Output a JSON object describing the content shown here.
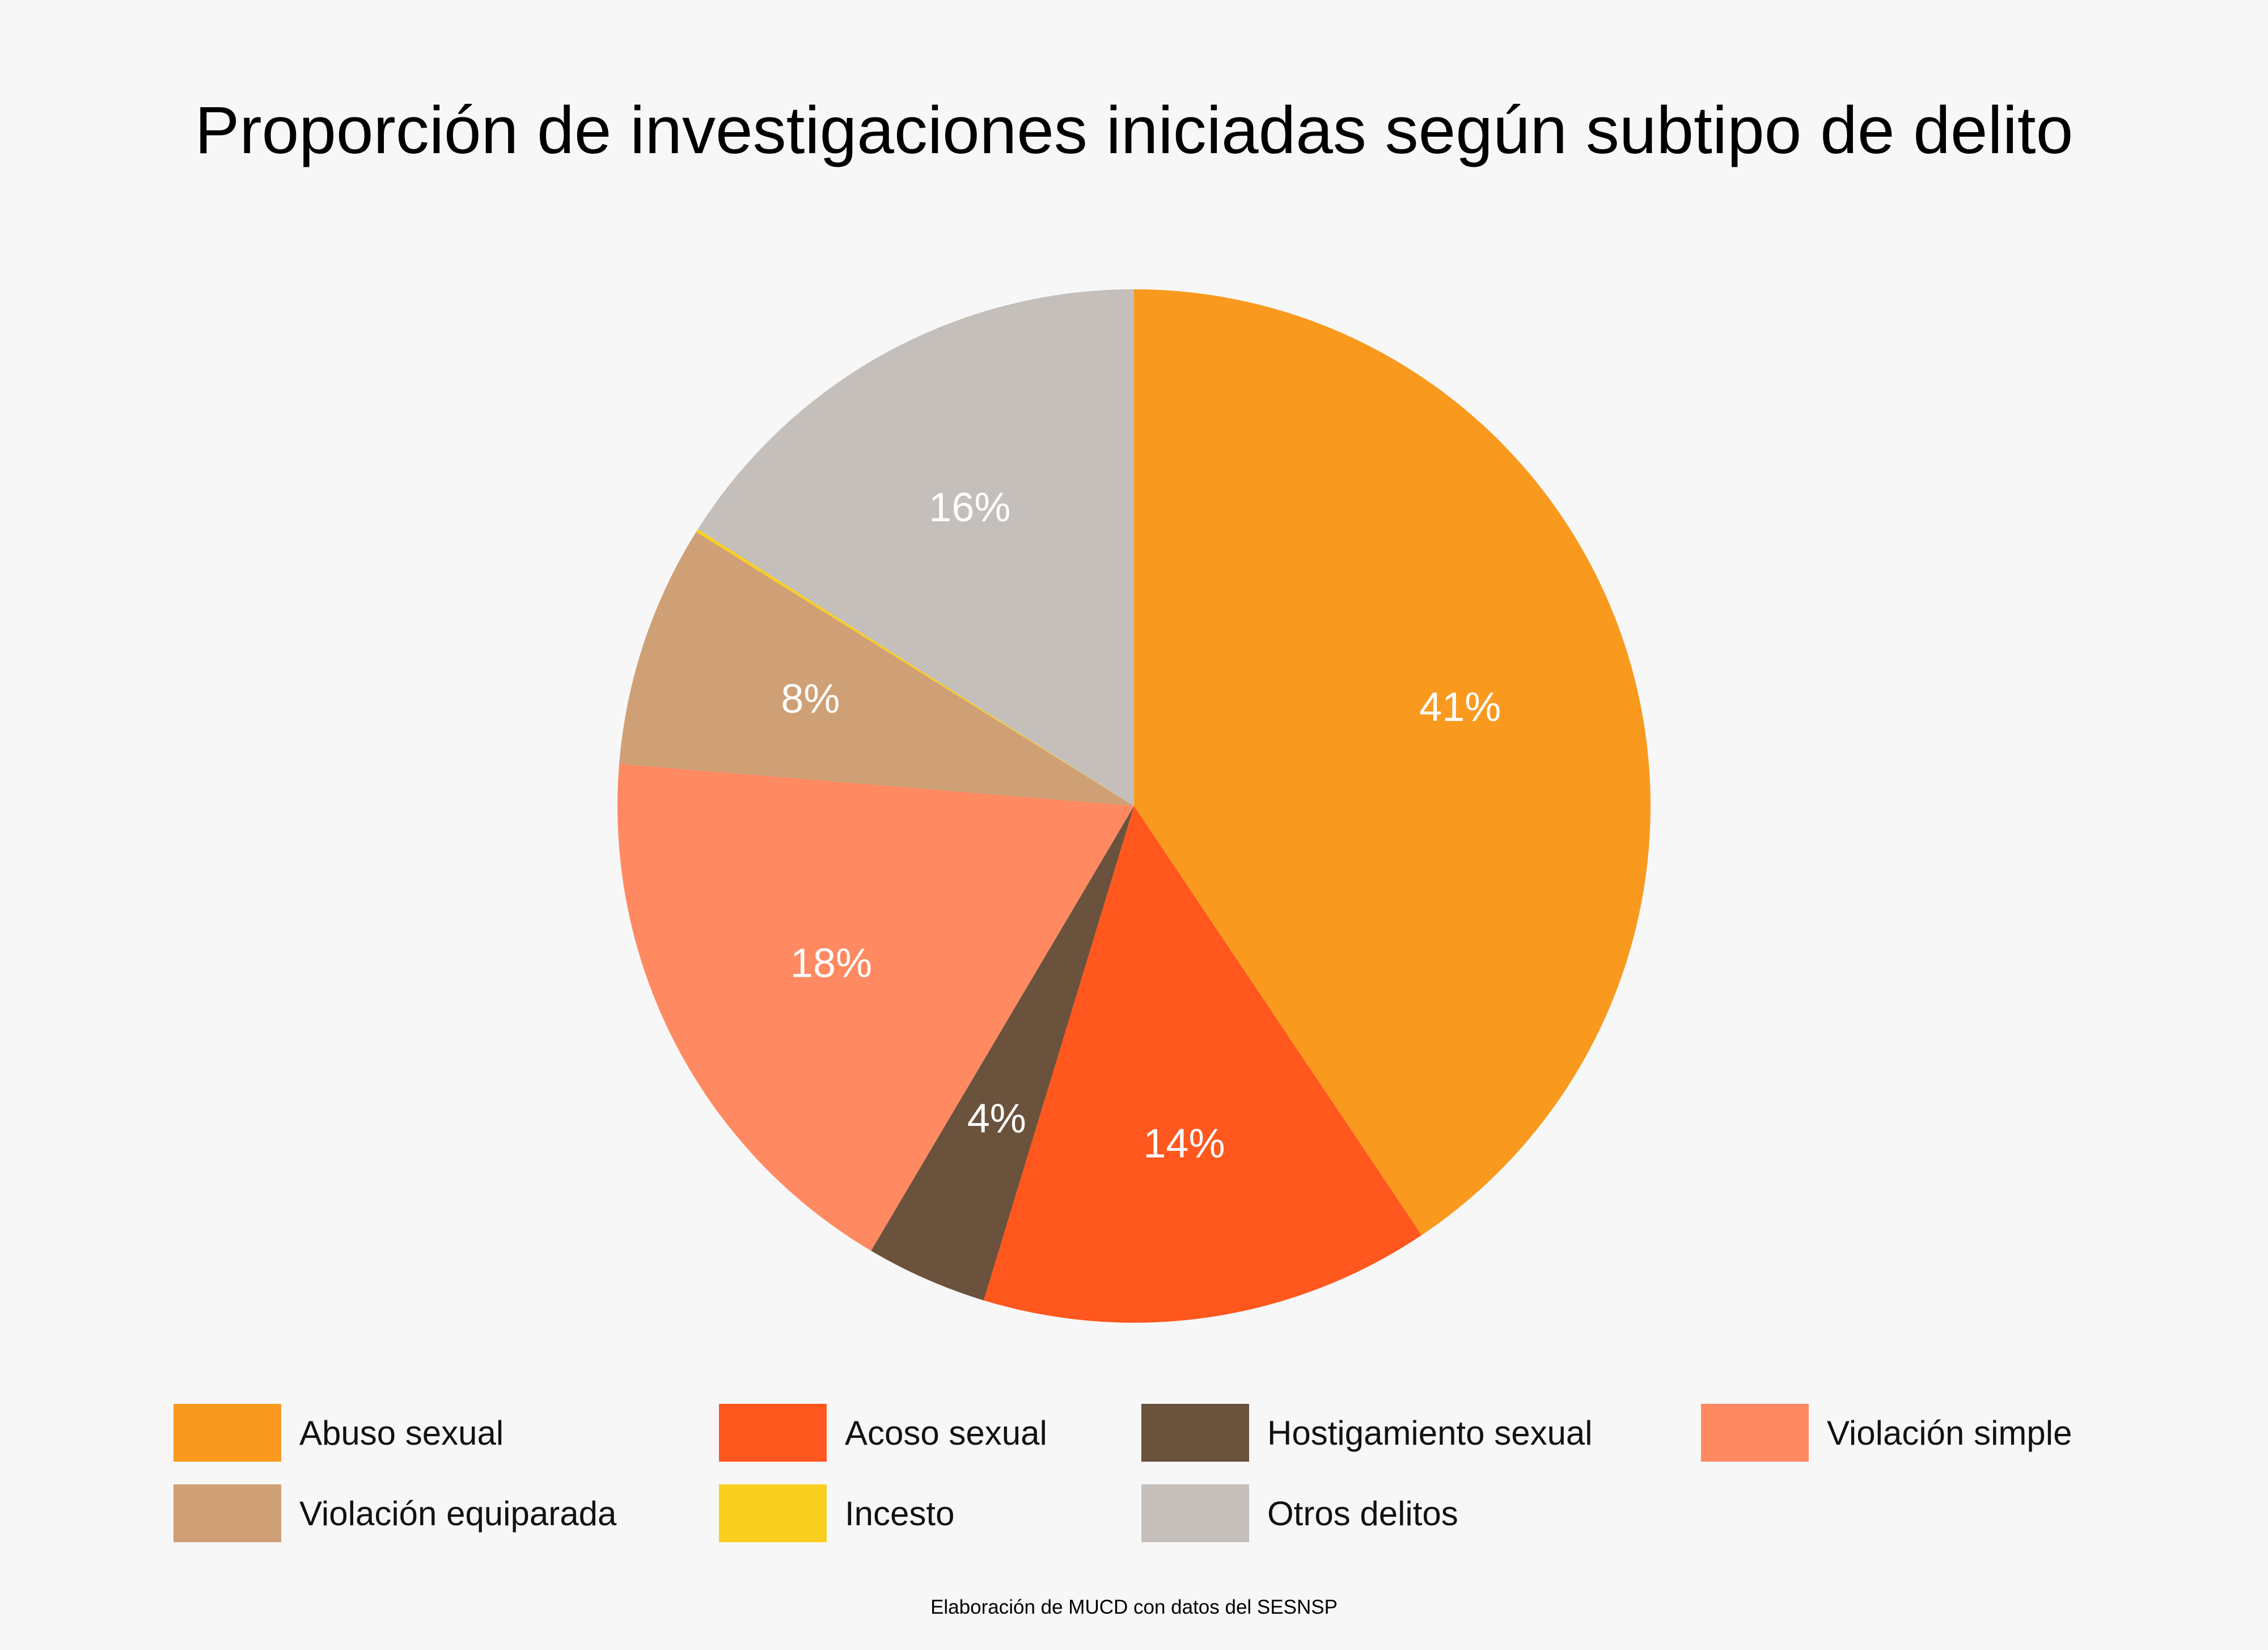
{
  "chart_data": {
    "type": "pie",
    "title": "Proporción de investigaciones iniciadas según subtipo de delito",
    "start": "top",
    "direction": "clockwise",
    "slices": [
      {
        "name": "Abuso sexual",
        "value": 40.6,
        "label": "41%",
        "color": "#f99a1f"
      },
      {
        "name": "Acoso sexual",
        "value": 14.1,
        "label": "14%",
        "color": "#ff571d"
      },
      {
        "name": "Hostigamiento sexual",
        "value": 3.8,
        "label": "4%",
        "color": "#6b523c"
      },
      {
        "name": "Violación simple",
        "value": 17.8,
        "label": "18%",
        "color": "#ff8961"
      },
      {
        "name": "Violación equiparada",
        "value": 7.6,
        "label": "8%",
        "color": "#cf9f75"
      },
      {
        "name": "Incesto",
        "value": 0.1,
        "label": "",
        "color": "#f8cf1f"
      },
      {
        "name": "Otros delitos",
        "value": 16.0,
        "label": "16%",
        "color": "#c4bfba"
      }
    ],
    "legend_position": "bottom"
  },
  "footer": "Elaboración de MUCD con datos del SESNSP"
}
